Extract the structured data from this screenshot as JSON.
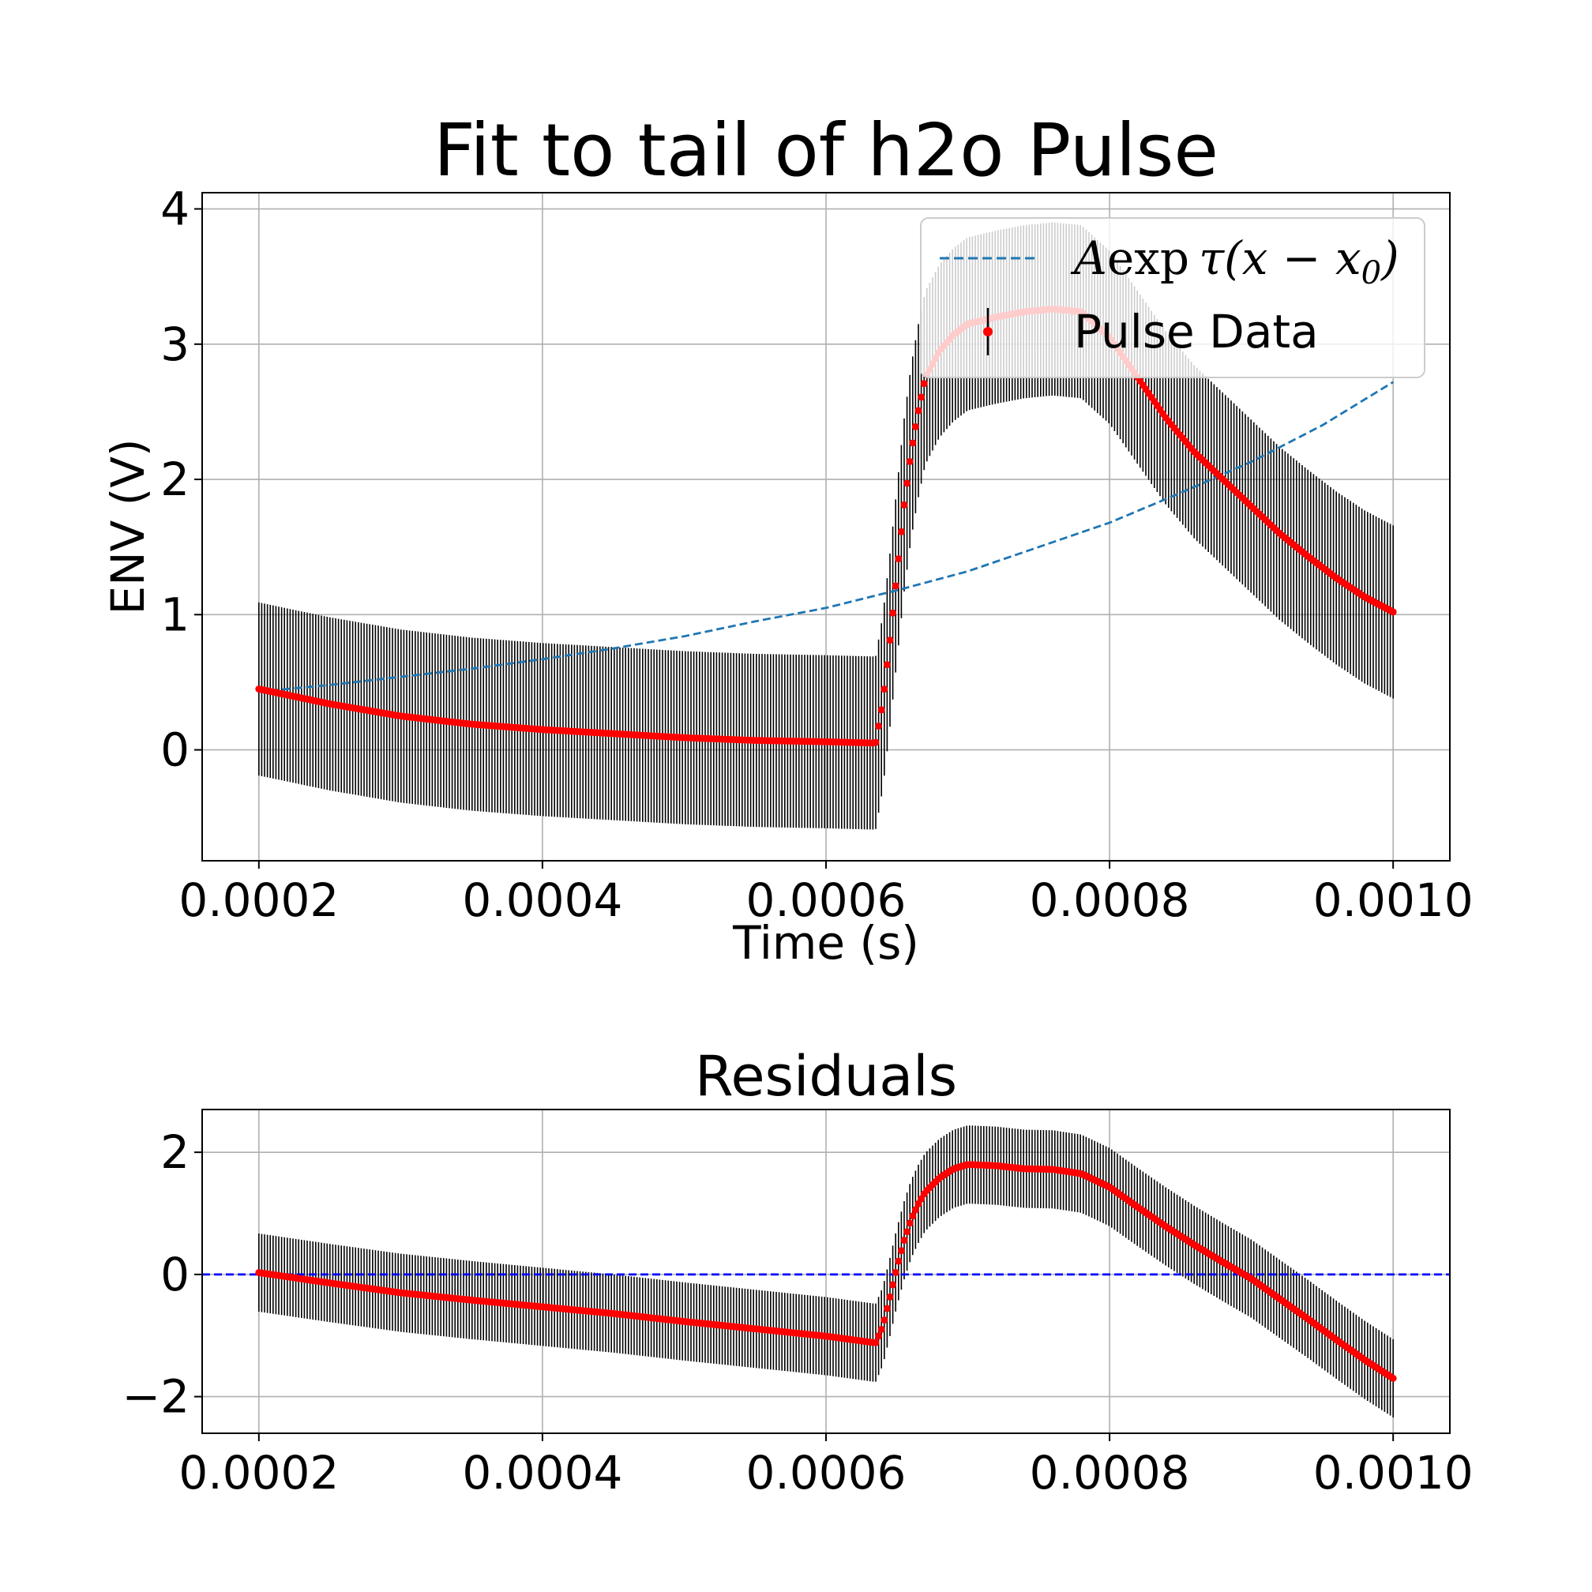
{
  "chart_data": [
    {
      "type": "line",
      "title": "Fit to tail of h2o Pulse",
      "xlabel": "Time (s)",
      "ylabel": "ENV (V)",
      "xlim": [
        0.00016,
        0.00104
      ],
      "ylim": [
        -0.82,
        4.12
      ],
      "xticks": [
        0.0002,
        0.0004,
        0.0006,
        0.0008,
        0.001
      ],
      "xtick_labels": [
        "0.0002",
        "0.0004",
        "0.0006",
        "0.0008",
        "0.0010"
      ],
      "yticks": [
        0,
        1,
        2,
        3,
        4
      ],
      "ytick_labels": [
        "0",
        "1",
        "2",
        "3",
        "4"
      ],
      "grid": true,
      "legend_position": "upper right",
      "legend": {
        "fit_label_A": "A",
        "fit_label_exp": "exp",
        "fit_label_tau": "τ(x − x",
        "fit_label_sub": "0",
        "fit_label_close": ")",
        "data_label": "Pulse Data"
      },
      "series": [
        {
          "name": "Pulse Data",
          "kind": "errorbar",
          "color": "#ff0000",
          "errcolor": "#000000",
          "yerr": 0.64,
          "x": [
            0.0002,
            0.00025,
            0.0003,
            0.00035,
            0.0004,
            0.00045,
            0.0005,
            0.00055,
            0.0006,
            0.000635,
            0.00064,
            0.000645,
            0.00065,
            0.000655,
            0.00066,
            0.000665,
            0.00067,
            0.00068,
            0.00069,
            0.0007,
            0.00072,
            0.00074,
            0.00076,
            0.00078,
            0.0008,
            0.00082,
            0.00084,
            0.00086,
            0.00088,
            0.0009,
            0.00092,
            0.00094,
            0.00096,
            0.00098,
            0.001
          ],
          "y": [
            0.45,
            0.34,
            0.25,
            0.19,
            0.15,
            0.12,
            0.09,
            0.07,
            0.06,
            0.05,
            0.35,
            0.8,
            1.3,
            1.8,
            2.2,
            2.5,
            2.75,
            2.95,
            3.07,
            3.15,
            3.2,
            3.24,
            3.26,
            3.24,
            3.05,
            2.75,
            2.45,
            2.2,
            2.0,
            1.8,
            1.6,
            1.43,
            1.27,
            1.13,
            1.02
          ]
        },
        {
          "name": "A exp τ(x − x0)",
          "kind": "dashed-line",
          "color": "#1f77b4",
          "x": [
            0.0002,
            0.00025,
            0.0003,
            0.00035,
            0.0004,
            0.00045,
            0.0005,
            0.00055,
            0.0006,
            0.00065,
            0.0007,
            0.00075,
            0.0008,
            0.00085,
            0.0009,
            0.00095,
            0.001
          ],
          "y": [
            0.43,
            0.48,
            0.54,
            0.6,
            0.67,
            0.75,
            0.84,
            0.95,
            1.05,
            1.18,
            1.32,
            1.5,
            1.68,
            1.9,
            2.13,
            2.4,
            2.72
          ]
        }
      ]
    },
    {
      "type": "line",
      "title": "Residuals",
      "xlabel": "",
      "ylabel": "",
      "xlim": [
        0.00016,
        0.00104
      ],
      "ylim": [
        -2.6,
        2.7
      ],
      "xticks": [
        0.0002,
        0.0004,
        0.0006,
        0.0008,
        0.001
      ],
      "xtick_labels": [
        "0.0002",
        "0.0004",
        "0.0006",
        "0.0008",
        "0.0010"
      ],
      "yticks": [
        -2,
        0,
        2
      ],
      "ytick_labels": [
        "−2",
        "0",
        "2"
      ],
      "grid": true,
      "series": [
        {
          "name": "Residuals",
          "kind": "errorbar",
          "color": "#ff0000",
          "errcolor": "#000000",
          "yerr": 0.64,
          "x": [
            0.0002,
            0.00025,
            0.0003,
            0.00035,
            0.0004,
            0.00045,
            0.0005,
            0.00055,
            0.0006,
            0.000635,
            0.00064,
            0.000645,
            0.00065,
            0.000655,
            0.00066,
            0.000665,
            0.00067,
            0.00068,
            0.00069,
            0.0007,
            0.00072,
            0.00074,
            0.00076,
            0.00078,
            0.0008,
            0.00082,
            0.00084,
            0.00086,
            0.00088,
            0.0009,
            0.00092,
            0.00094,
            0.00096,
            0.00098,
            0.001
          ],
          "y": [
            0.03,
            -0.14,
            -0.3,
            -0.42,
            -0.53,
            -0.64,
            -0.77,
            -0.89,
            -1.01,
            -1.12,
            -0.85,
            -0.38,
            0.12,
            0.55,
            0.9,
            1.15,
            1.35,
            1.58,
            1.73,
            1.8,
            1.78,
            1.73,
            1.72,
            1.65,
            1.43,
            1.1,
            0.78,
            0.48,
            0.2,
            -0.07,
            -0.4,
            -0.73,
            -1.07,
            -1.4,
            -1.7
          ]
        },
        {
          "name": "zero",
          "kind": "dashed-line",
          "color": "#0000ff",
          "x": [
            0.00016,
            0.00104
          ],
          "y": [
            0,
            0
          ]
        }
      ]
    }
  ]
}
